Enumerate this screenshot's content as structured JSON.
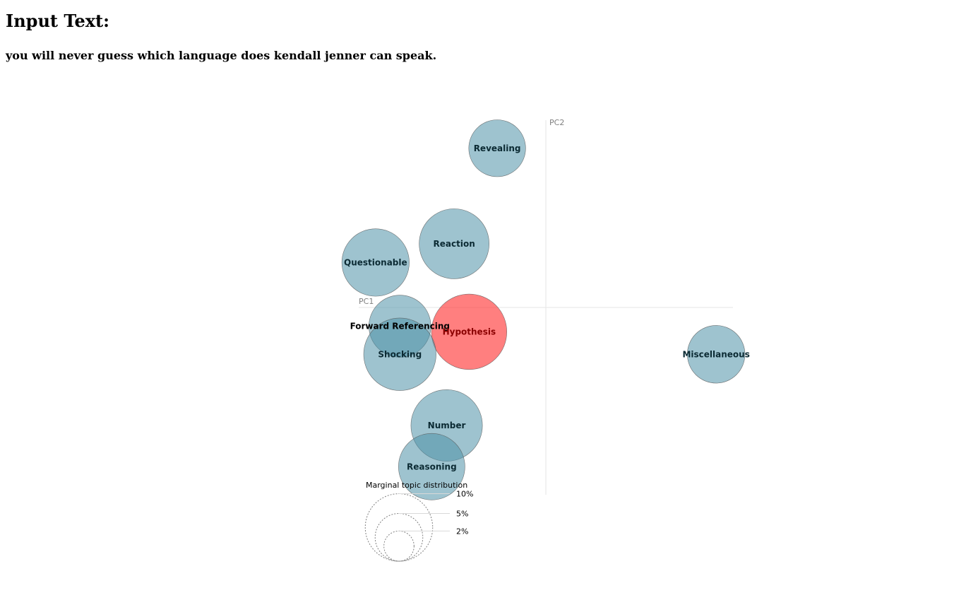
{
  "page": {
    "heading": "Input Text:",
    "input_text": "you will never guess which language does kendall jenner can speak."
  },
  "colors": {
    "bubble_default": "#4f92a8",
    "bubble_highlight": "#ff2a2a",
    "label_default": "#0b2a33",
    "label_highlight": "#8b0000",
    "label_outside": "#000000"
  },
  "chart_data": {
    "type": "scatter",
    "xlabel": "PC1",
    "ylabel": "PC2",
    "xlim": [
      -1.0,
      1.0
    ],
    "ylim": [
      -1.0,
      1.0
    ],
    "grid": false,
    "legend": {
      "title": "Marginal topic distribution",
      "placement": "bottom-left",
      "entries": [
        {
          "label": "2%",
          "value": 2
        },
        {
          "label": "5%",
          "value": 5
        },
        {
          "label": "10%",
          "value": 10
        }
      ]
    },
    "points": [
      {
        "label": "Revealing",
        "x": -0.26,
        "y": 0.85,
        "size": 7.4,
        "highlight": false
      },
      {
        "label": "Reaction",
        "x": -0.49,
        "y": 0.34,
        "size": 11.2,
        "highlight": false
      },
      {
        "label": "Questionable",
        "x": -0.91,
        "y": 0.24,
        "size": 10.4,
        "highlight": false
      },
      {
        "label": "Forward Referencing",
        "x": -0.78,
        "y": -0.1,
        "size": 8.8,
        "highlight": false,
        "label_outside": true
      },
      {
        "label": "Hypothesis",
        "x": -0.41,
        "y": -0.13,
        "size": 13.0,
        "highlight": true
      },
      {
        "label": "Shocking",
        "x": -0.78,
        "y": -0.25,
        "size": 12.0,
        "highlight": false
      },
      {
        "label": "Miscellaneous",
        "x": 0.91,
        "y": -0.25,
        "size": 7.6,
        "highlight": false
      },
      {
        "label": "Number",
        "x": -0.53,
        "y": -0.63,
        "size": 11.7,
        "highlight": false
      },
      {
        "label": "Reasoning",
        "x": -0.61,
        "y": -0.85,
        "size": 10.1,
        "highlight": false
      }
    ]
  }
}
